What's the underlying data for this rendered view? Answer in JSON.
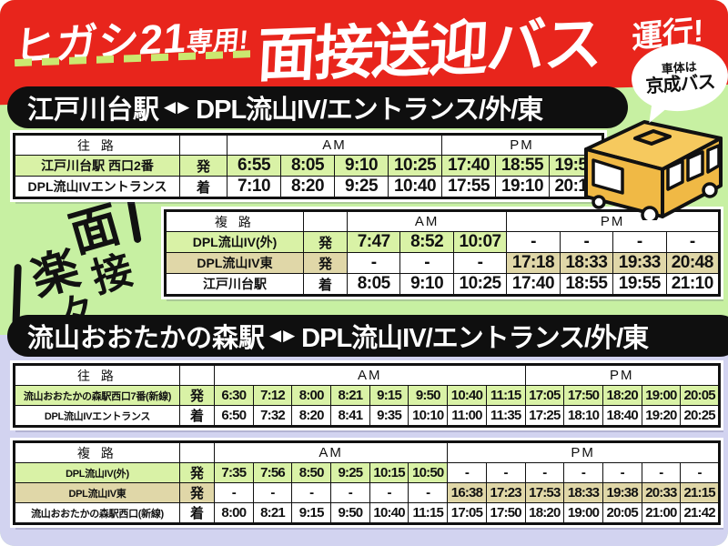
{
  "flyer": {
    "header": {
      "badge_main": "ヒガシ21",
      "badge_sub": "専用!",
      "title": "面接送迎バス",
      "suffix": "運行!",
      "bubble_top": "車体は",
      "bubble_bottom": "京成バス"
    },
    "decor": {
      "chars": [
        "楽",
        "々",
        "面",
        "接"
      ]
    },
    "banners": [
      {
        "station": "江戸川台駅",
        "arrows": "◀▶",
        "destination": "DPL流山IV/エントランス/外/東"
      },
      {
        "station": "流山おおたかの森駅",
        "arrows": "◀▶",
        "destination": "DPL流山IV/エントランス/外/東"
      }
    ],
    "colors": {
      "header_red": "#e8251c",
      "section_green": "#c7f0a2",
      "section_lavender": "#d2d3f0",
      "cell_green": "#d9f2a6",
      "cell_beige": "#e0d7a8",
      "dash_lime": "#cbe86f",
      "bus_yellow": "#f0b945",
      "banner_black": "#0f0f0f"
    },
    "tables": [
      {
        "route_label": "往 路",
        "am_label": "AM",
        "pm_label": "PM",
        "am_span": 4,
        "pm_span": 3,
        "rows": [
          {
            "label": "江戸川台駅 西口2番",
            "type": "発",
            "color": "green",
            "times": [
              "6:55",
              "8:05",
              "9:10",
              "10:25",
              "17:40",
              "18:55",
              "19:55"
            ]
          },
          {
            "label": "DPL流山IVエントランス",
            "type": "着",
            "color": "white",
            "times": [
              "7:10",
              "8:20",
              "9:25",
              "10:40",
              "17:55",
              "19:10",
              "20:10"
            ]
          }
        ]
      },
      {
        "route_label": "複 路",
        "am_label": "AM",
        "pm_label": "PM",
        "am_span": 3,
        "pm_span": 4,
        "rows": [
          {
            "label": "DPL流山IV(外)",
            "type": "発",
            "color": "green",
            "times": [
              "7:47",
              "8:52",
              "10:07",
              "-",
              "-",
              "-",
              "-"
            ]
          },
          {
            "label": "DPL流山IV東",
            "type": "発",
            "color": "beige",
            "times": [
              "-",
              "-",
              "-",
              "17:18",
              "18:33",
              "19:33",
              "20:48"
            ]
          },
          {
            "label": "江戸川台駅",
            "type": "着",
            "color": "white",
            "times": [
              "8:05",
              "9:10",
              "10:25",
              "17:40",
              "18:55",
              "19:55",
              "21:10"
            ]
          }
        ]
      },
      {
        "route_label": "往 路",
        "am_label": "AM",
        "pm_label": "PM",
        "am_span": 8,
        "pm_span": 5,
        "rows": [
          {
            "label": "流山おおたかの森駅西口7番(新線)",
            "type": "発",
            "color": "green",
            "times": [
              "6:30",
              "7:12",
              "8:00",
              "8:21",
              "9:15",
              "9:50",
              "10:40",
              "11:15",
              "17:05",
              "17:50",
              "18:20",
              "19:00",
              "20:05"
            ]
          },
          {
            "label": "DPL流山IVエントランス",
            "type": "着",
            "color": "white",
            "times": [
              "6:50",
              "7:32",
              "8:20",
              "8:41",
              "9:35",
              "10:10",
              "11:00",
              "11:35",
              "17:25",
              "18:10",
              "18:40",
              "19:20",
              "20:25"
            ]
          }
        ]
      },
      {
        "route_label": "複 路",
        "am_label": "AM",
        "pm_label": "PM",
        "am_span": 6,
        "pm_span": 7,
        "rows": [
          {
            "label": "DPL流山IV(外)",
            "type": "発",
            "color": "green",
            "times": [
              "7:35",
              "7:56",
              "8:50",
              "9:25",
              "10:15",
              "10:50",
              "-",
              "-",
              "-",
              "-",
              "-",
              "-",
              "-"
            ]
          },
          {
            "label": "DPL流山IV東",
            "type": "発",
            "color": "beige",
            "times": [
              "-",
              "-",
              "-",
              "-",
              "-",
              "-",
              "16:38",
              "17:23",
              "17:53",
              "18:33",
              "19:38",
              "20:33",
              "21:15"
            ]
          },
          {
            "label": "流山おおたかの森駅西口(新線)",
            "type": "着",
            "color": "white",
            "times": [
              "8:00",
              "8:21",
              "9:15",
              "9:50",
              "10:40",
              "11:15",
              "17:05",
              "17:50",
              "18:20",
              "19:00",
              "20:05",
              "21:00",
              "21:42"
            ]
          }
        ]
      }
    ]
  }
}
